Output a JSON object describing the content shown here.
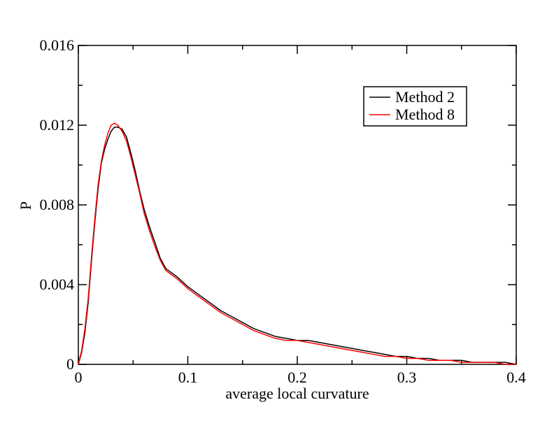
{
  "chart_data": {
    "type": "line",
    "xlabel": "average local curvature",
    "ylabel": "P",
    "xlim": [
      0,
      0.4
    ],
    "ylim": [
      0,
      0.016
    ],
    "x_major_ticks": [
      0,
      0.1,
      0.2,
      0.3,
      0.4
    ],
    "x_tick_labels": [
      "0",
      "0.1",
      "0.2",
      "0.3",
      "0.4"
    ],
    "y_major_ticks": [
      0,
      0.004,
      0.008,
      0.012,
      0.016
    ],
    "y_tick_labels": [
      "0",
      "0.004",
      "0.008",
      "0.012",
      "0.016"
    ],
    "grid": false,
    "legend_position": "top-right",
    "series": [
      {
        "name": "Method 2",
        "color": "#000000",
        "x": [
          0,
          0.003,
          0.006,
          0.009,
          0.012,
          0.015,
          0.018,
          0.021,
          0.024,
          0.027,
          0.03,
          0.033,
          0.036,
          0.04,
          0.044,
          0.048,
          0.052,
          0.056,
          0.06,
          0.065,
          0.07,
          0.075,
          0.08,
          0.09,
          0.1,
          0.11,
          0.12,
          0.13,
          0.14,
          0.15,
          0.16,
          0.17,
          0.18,
          0.19,
          0.2,
          0.21,
          0.22,
          0.23,
          0.24,
          0.25,
          0.26,
          0.27,
          0.28,
          0.29,
          0.3,
          0.31,
          0.32,
          0.33,
          0.34,
          0.35,
          0.36,
          0.37,
          0.38,
          0.39,
          0.4
        ],
        "y": [
          0.0,
          0.0006,
          0.0016,
          0.0031,
          0.0052,
          0.0071,
          0.0088,
          0.0101,
          0.0108,
          0.0113,
          0.0117,
          0.0119,
          0.0119,
          0.0118,
          0.0114,
          0.0106,
          0.0097,
          0.0087,
          0.0078,
          0.0069,
          0.0061,
          0.0053,
          0.0048,
          0.0044,
          0.0039,
          0.0035,
          0.0031,
          0.0027,
          0.0024,
          0.0021,
          0.0018,
          0.0016,
          0.0014,
          0.0013,
          0.0012,
          0.0012,
          0.0011,
          0.001,
          0.0009,
          0.0008,
          0.0007,
          0.0006,
          0.0005,
          0.0004,
          0.0004,
          0.0003,
          0.0003,
          0.0002,
          0.0002,
          0.0002,
          0.0001,
          0.0001,
          0.0001,
          0.0001,
          0.0
        ]
      },
      {
        "name": "Method 8",
        "color": "#ff0000",
        "x": [
          0,
          0.003,
          0.006,
          0.009,
          0.012,
          0.015,
          0.018,
          0.021,
          0.024,
          0.027,
          0.03,
          0.033,
          0.036,
          0.04,
          0.044,
          0.048,
          0.052,
          0.056,
          0.06,
          0.065,
          0.07,
          0.075,
          0.08,
          0.09,
          0.1,
          0.11,
          0.12,
          0.13,
          0.14,
          0.15,
          0.16,
          0.17,
          0.18,
          0.19,
          0.2,
          0.21,
          0.22,
          0.23,
          0.24,
          0.25,
          0.26,
          0.27,
          0.28,
          0.29,
          0.3,
          0.31,
          0.32,
          0.33,
          0.34,
          0.35,
          0.36,
          0.37,
          0.38,
          0.39,
          0.4
        ],
        "y": [
          0.0,
          0.0007,
          0.0018,
          0.0033,
          0.0054,
          0.0073,
          0.009,
          0.0102,
          0.011,
          0.0116,
          0.012,
          0.0121,
          0.012,
          0.0117,
          0.0112,
          0.0104,
          0.0095,
          0.0086,
          0.0076,
          0.0067,
          0.0059,
          0.0052,
          0.0047,
          0.0043,
          0.0038,
          0.0034,
          0.003,
          0.0026,
          0.0023,
          0.002,
          0.0017,
          0.0015,
          0.0013,
          0.0012,
          0.0012,
          0.0011,
          0.001,
          0.0009,
          0.0008,
          0.0007,
          0.0006,
          0.0005,
          0.0004,
          0.0004,
          0.0003,
          0.0003,
          0.0002,
          0.0002,
          0.0002,
          0.0001,
          0.0001,
          0.0001,
          0.0001,
          0.0,
          0.0
        ]
      }
    ]
  }
}
